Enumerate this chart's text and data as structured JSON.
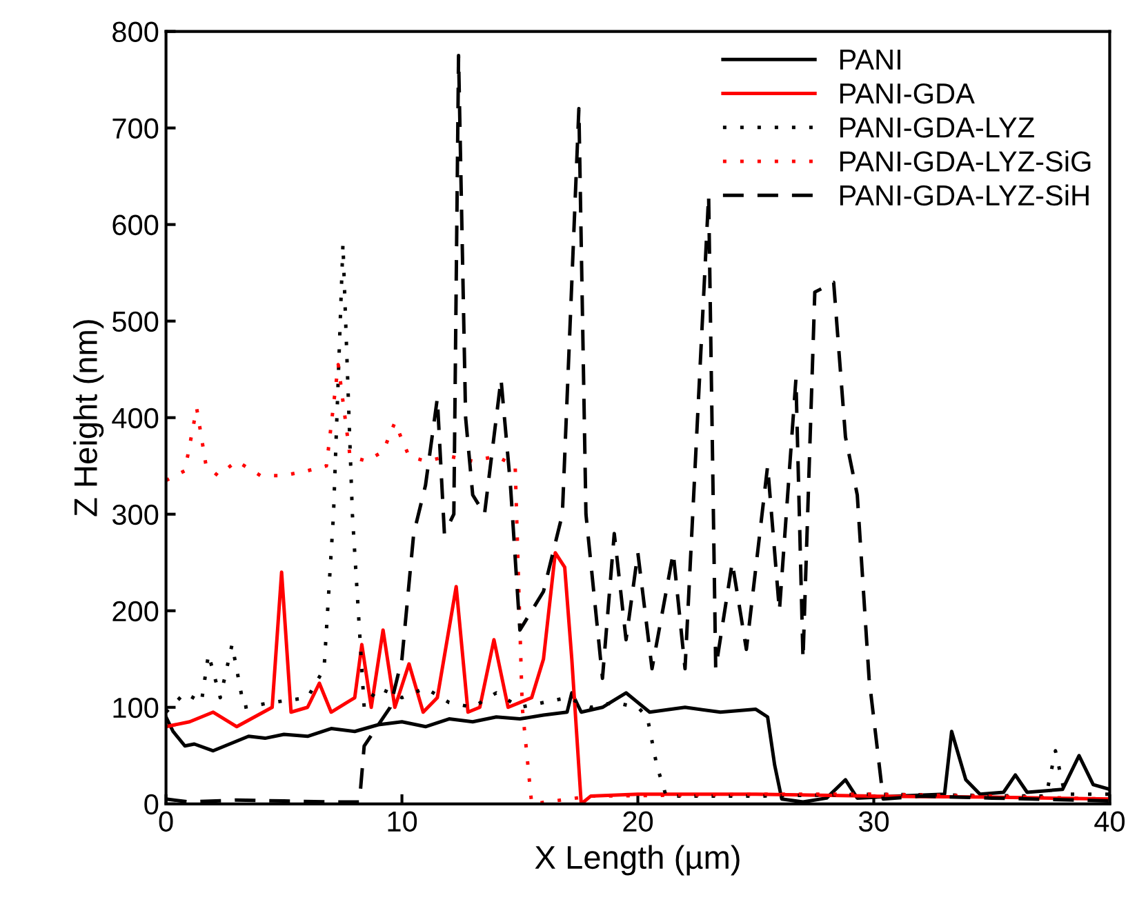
{
  "chart_data": {
    "type": "line",
    "xlabel": "X Length (µm)",
    "ylabel": "Z Height (nm)",
    "xlim": [
      0,
      40
    ],
    "ylim": [
      0,
      800
    ],
    "xticks": [
      0,
      10,
      20,
      30,
      40
    ],
    "yticks": [
      0,
      100,
      200,
      300,
      400,
      500,
      600,
      700,
      800
    ],
    "grid": false,
    "legend": "top right",
    "marker": "none",
    "series": [
      {
        "name": "PANI",
        "color": "#000000",
        "line_style": "solid",
        "x": [
          0,
          0.3,
          0.8,
          1.2,
          2,
          3,
          3.5,
          4.2,
          5,
          6,
          7,
          8,
          9,
          10,
          11,
          12,
          13,
          14,
          15,
          16,
          17,
          17.2,
          17.6,
          18.5,
          19.5,
          20.5,
          22,
          23.5,
          25,
          25.5,
          25.8,
          26.1,
          27,
          28,
          28.8,
          29.3,
          31,
          33,
          33.3,
          33.9,
          34.5,
          35.5,
          36,
          36.5,
          38,
          38.7,
          39.3,
          40
        ],
        "values": [
          90,
          75,
          60,
          62,
          55,
          65,
          70,
          68,
          72,
          70,
          78,
          75,
          82,
          85,
          80,
          88,
          85,
          90,
          88,
          92,
          95,
          115,
          95,
          100,
          115,
          95,
          100,
          95,
          98,
          90,
          40,
          5,
          2,
          6,
          25,
          6,
          8,
          10,
          75,
          25,
          10,
          12,
          30,
          12,
          15,
          50,
          20,
          15
        ]
      },
      {
        "name": "PANI-GDA",
        "color": "#ff0000",
        "line_style": "solid",
        "x": [
          0,
          1,
          2,
          3,
          4.5,
          4.9,
          5.3,
          6,
          6.5,
          7,
          8,
          8.3,
          8.7,
          9.2,
          9.7,
          10.3,
          10.9,
          11.5,
          12.3,
          12.8,
          13.3,
          13.9,
          14.5,
          15.5,
          16,
          16.5,
          16.9,
          17.2,
          17.6,
          18,
          20,
          25,
          30,
          35,
          40
        ],
        "values": [
          80,
          85,
          95,
          80,
          100,
          240,
          95,
          100,
          125,
          95,
          110,
          165,
          100,
          180,
          100,
          145,
          95,
          110,
          225,
          95,
          100,
          170,
          100,
          110,
          150,
          260,
          245,
          150,
          0,
          8,
          10,
          10,
          8,
          7,
          5
        ]
      },
      {
        "name": "PANI-GDA-LYZ",
        "color": "#000000",
        "line_style": "dotted",
        "x": [
          0,
          0.8,
          1.5,
          1.8,
          2.3,
          2.8,
          3.3,
          4.5,
          6,
          6.7,
          7.1,
          7.5,
          7.9,
          8.4,
          9,
          10,
          11,
          12,
          13,
          14,
          15,
          16,
          17,
          18,
          19,
          20,
          20.4,
          20.8,
          21.2,
          25,
          30,
          37.3,
          37.7,
          38.1,
          40
        ],
        "values": [
          95,
          115,
          105,
          155,
          110,
          165,
          100,
          105,
          110,
          140,
          300,
          580,
          300,
          100,
          120,
          110,
          120,
          105,
          100,
          115,
          100,
          105,
          110,
          100,
          105,
          100,
          90,
          40,
          8,
          8,
          10,
          8,
          55,
          10,
          10
        ]
      },
      {
        "name": "PANI-GDA-LYZ-SiG",
        "color": "#ff0000",
        "line_style": "dotted",
        "x": [
          0,
          0.8,
          1.3,
          1.7,
          2.2,
          3,
          4,
          5,
          6,
          6.8,
          7.3,
          7.8,
          8.5,
          9.2,
          9.7,
          10.3,
          11,
          12,
          13,
          14,
          14.8,
          15.1,
          15.5,
          18,
          25,
          30,
          35,
          40
        ],
        "values": [
          335,
          345,
          410,
          350,
          340,
          355,
          340,
          340,
          345,
          350,
          455,
          360,
          355,
          365,
          395,
          360,
          355,
          360,
          355,
          360,
          350,
          100,
          0,
          8,
          10,
          10,
          8,
          5
        ]
      },
      {
        "name": "PANI-GDA-LYZ-SiH",
        "color": "#000000",
        "line_style": "dashed",
        "x": [
          0,
          1,
          3,
          5,
          7,
          8.2,
          8.4,
          9.5,
          10,
          10.5,
          11,
          11.5,
          11.8,
          12.2,
          12.4,
          12.7,
          13,
          13.5,
          14.2,
          14.6,
          15,
          16,
          16.8,
          17.5,
          17.8,
          18.5,
          19,
          19.5,
          20,
          20.6,
          21.5,
          22,
          23,
          23.3,
          24,
          24.6,
          25.5,
          26,
          26.7,
          27,
          27.5,
          28.3,
          28.8,
          29.3,
          29.8,
          30.4,
          32,
          35,
          40
        ],
        "values": [
          5,
          2,
          4,
          3,
          2,
          2,
          60,
          100,
          150,
          280,
          330,
          420,
          280,
          300,
          775,
          400,
          320,
          300,
          440,
          330,
          180,
          220,
          300,
          720,
          300,
          130,
          280,
          170,
          260,
          140,
          260,
          140,
          630,
          140,
          250,
          160,
          350,
          200,
          440,
          150,
          530,
          540,
          380,
          320,
          130,
          5,
          8,
          6,
          3
        ]
      }
    ]
  }
}
